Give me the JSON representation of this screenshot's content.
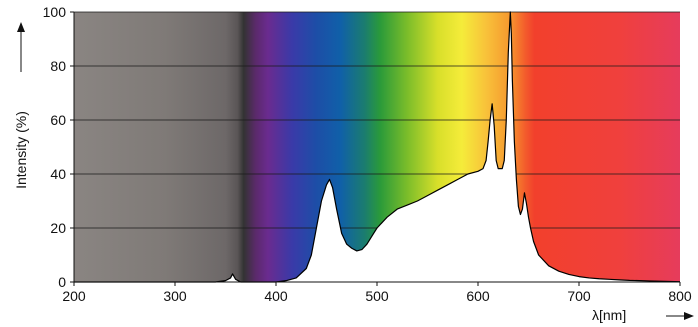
{
  "chart_data": {
    "type": "area",
    "xlabel": "λ[nm]",
    "ylabel": "Intensity (%)",
    "xlim": [
      200,
      800
    ],
    "ylim": [
      0,
      100
    ],
    "x_ticks": [
      200,
      300,
      400,
      500,
      600,
      700,
      800
    ],
    "y_ticks": [
      0,
      20,
      40,
      60,
      80,
      100
    ],
    "grid": "horizontal",
    "background": "wavelength color spectrum (gray UV region, violet–blue–green–yellow–orange–red visible region)",
    "series": [
      {
        "x": [
          200,
          300,
          340,
          350,
          355,
          357,
          360,
          365,
          380,
          400,
          410,
          420,
          430,
          435,
          440,
          445,
          450,
          453,
          456,
          460,
          465,
          470,
          475,
          480,
          485,
          490,
          495,
          500,
          510,
          520,
          530,
          540,
          550,
          560,
          570,
          580,
          590,
          600,
          605,
          608,
          610,
          612,
          614,
          616,
          618,
          620,
          624,
          626,
          628,
          630,
          632,
          633,
          634,
          636,
          638,
          640,
          642,
          644,
          646,
          648,
          650,
          652,
          655,
          660,
          670,
          680,
          690,
          700,
          710,
          720,
          730,
          740,
          750,
          760,
          770,
          780,
          790,
          800
        ],
        "y": [
          0,
          0,
          0,
          0.5,
          1.5,
          3,
          1,
          0,
          0,
          0,
          0.5,
          1.5,
          5,
          10,
          20,
          30,
          36,
          38,
          35,
          27,
          18,
          14,
          12.5,
          11.5,
          12,
          14,
          17,
          20,
          24,
          27,
          28.5,
          30,
          32,
          34,
          36,
          38,
          40,
          41,
          42,
          45,
          52,
          60,
          66,
          58,
          45,
          42,
          42,
          45,
          60,
          85,
          100,
          92,
          75,
          52,
          38,
          28,
          25,
          27,
          33,
          29,
          24,
          20,
          15,
          10,
          6,
          4,
          2.8,
          2,
          1.5,
          1.2,
          1,
          0.8,
          0.6,
          0.5,
          0.4,
          0.3,
          0.2,
          0.1
        ]
      }
    ]
  }
}
